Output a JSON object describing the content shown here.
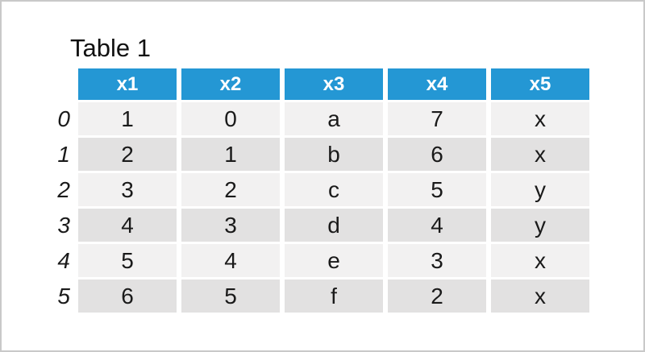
{
  "title": "Table 1",
  "table": {
    "columns": [
      "x1",
      "x2",
      "x3",
      "x4",
      "x5"
    ],
    "row_indices": [
      "0",
      "1",
      "2",
      "3",
      "4",
      "5"
    ],
    "rows": [
      [
        "1",
        "0",
        "a",
        "7",
        "x"
      ],
      [
        "2",
        "1",
        "b",
        "6",
        "x"
      ],
      [
        "3",
        "2",
        "c",
        "5",
        "y"
      ],
      [
        "4",
        "3",
        "d",
        "4",
        "y"
      ],
      [
        "5",
        "4",
        "e",
        "3",
        "x"
      ],
      [
        "6",
        "5",
        "f",
        "2",
        "x"
      ]
    ]
  },
  "chart_data": {
    "type": "table",
    "title": "Table 1",
    "columns": [
      "x1",
      "x2",
      "x3",
      "x4",
      "x5"
    ],
    "row_indices": [
      0,
      1,
      2,
      3,
      4,
      5
    ],
    "rows": [
      [
        1,
        0,
        "a",
        7,
        "x"
      ],
      [
        2,
        1,
        "b",
        6,
        "x"
      ],
      [
        3,
        2,
        "c",
        5,
        "y"
      ],
      [
        4,
        3,
        "d",
        4,
        "y"
      ],
      [
        5,
        4,
        "e",
        3,
        "x"
      ],
      [
        6,
        5,
        "f",
        2,
        "x"
      ]
    ]
  },
  "colors": {
    "header_bg": "#2497d4",
    "header_text": "#ffffff",
    "row_even_bg": "#f2f1f1",
    "row_odd_bg": "#e2e1e1",
    "frame_border": "#c9c9c9"
  }
}
